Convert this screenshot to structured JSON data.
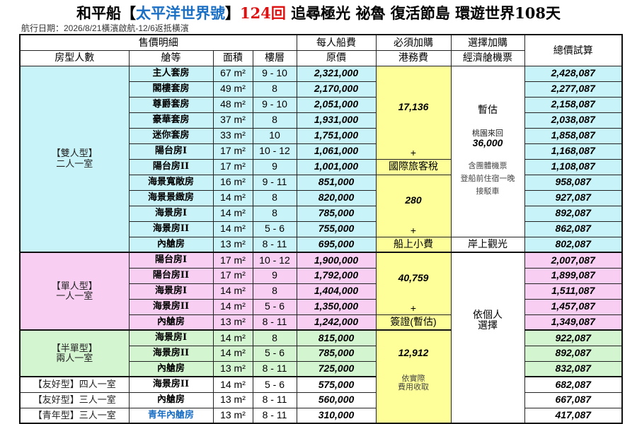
{
  "title": {
    "part1": "和平船【",
    "ship": "太平洋世界號",
    "part2": "】",
    "voyage": "124回",
    "part3": " 追尋極光 祕魯 復活節島 環遊世界108天"
  },
  "subtitle": "航行日期：2026/8/21橫濱啟航-12/6返抵橫濱",
  "headers": {
    "sales": "售價明細",
    "per_person": "每人船費",
    "required": "必須加購",
    "optional": "選擇加購",
    "total": "總價試算",
    "room_type": "房型人數",
    "cabin": "艙等",
    "area": "面積",
    "floor": "樓層",
    "price": "原價",
    "port_fee": "港務費",
    "flight": "經濟艙機票"
  },
  "colors": {
    "double": "#c8f3f8",
    "single": "#f8cff3",
    "half": "#d3f5d0",
    "required": "#ffff99",
    "title_blue": "#1a6fc4",
    "title_red": "#e01010"
  },
  "groups": [
    {
      "label1": "【雙人型】",
      "label2": "二人一室"
    },
    {
      "label1": "【單人型】",
      "label2": "一人一室"
    },
    {
      "label1": "【半單型】",
      "label2": "兩人一室"
    },
    {
      "label1": "【友好型】四人一室",
      "label2": ""
    },
    {
      "label1": "【友好型】三人一室",
      "label2": ""
    },
    {
      "label1": "【青年型】三人一室",
      "label2": ""
    }
  ],
  "rows": [
    {
      "cabin": "主人套房",
      "area": "67 m²",
      "floor": "9 - 10",
      "price": "2,321,000",
      "total": "2,428,087"
    },
    {
      "cabin": "閣樓套房",
      "area": "49 m²",
      "floor": "8",
      "price": "2,170,000",
      "total": "2,277,087"
    },
    {
      "cabin": "尊爵套房",
      "area": "48 m²",
      "floor": "9 - 10",
      "price": "2,051,000",
      "total": "2,158,087"
    },
    {
      "cabin": "豪華套房",
      "area": "37 m²",
      "floor": "8",
      "price": "1,931,000",
      "total": "2,038,087"
    },
    {
      "cabin": "迷你套房",
      "area": "33 m²",
      "floor": "10",
      "price": "1,751,000",
      "total": "1,858,087"
    },
    {
      "cabin": "陽台房I",
      "area": "17 m²",
      "floor": "10 - 12",
      "price": "1,061,000",
      "total": "1,168,087"
    },
    {
      "cabin": "陽台房II",
      "area": "17 m²",
      "floor": "9",
      "price": "1,001,000",
      "total": "1,108,087"
    },
    {
      "cabin": "海景寬敞房",
      "area": "16 m²",
      "floor": "9 - 11",
      "price": "851,000",
      "total": "958,087"
    },
    {
      "cabin": "海景景緻房",
      "area": "14 m²",
      "floor": "8",
      "price": "820,000",
      "total": "927,087"
    },
    {
      "cabin": "海景房I",
      "area": "14 m²",
      "floor": "8",
      "price": "785,000",
      "total": "892,087"
    },
    {
      "cabin": "海景房II",
      "area": "14 m²",
      "floor": "5 - 6",
      "price": "755,000",
      "total": "862,087"
    },
    {
      "cabin": "內艙房",
      "area": "13 m²",
      "floor": "8 - 11",
      "price": "695,000",
      "total": "802,087"
    },
    {
      "cabin": "陽台房I",
      "area": "17 m²",
      "floor": "10 - 12",
      "price": "1,900,000",
      "total": "2,007,087"
    },
    {
      "cabin": "陽台房II",
      "area": "17 m²",
      "floor": "9",
      "price": "1,792,000",
      "total": "1,899,087"
    },
    {
      "cabin": "海景房I",
      "area": "14 m²",
      "floor": "8",
      "price": "1,404,000",
      "total": "1,511,087"
    },
    {
      "cabin": "海景房II",
      "area": "14 m²",
      "floor": "5 - 6",
      "price": "1,350,000",
      "total": "1,457,087"
    },
    {
      "cabin": "內艙房",
      "area": "13 m²",
      "floor": "8 - 11",
      "price": "1,242,000",
      "total": "1,349,087"
    },
    {
      "cabin": "海景房I",
      "area": "14 m²",
      "floor": "8",
      "price": "815,000",
      "total": "922,087"
    },
    {
      "cabin": "海景房II",
      "area": "14 m²",
      "floor": "5 - 6",
      "price": "785,000",
      "total": "892,087"
    },
    {
      "cabin": "內艙房",
      "area": "13 m²",
      "floor": "8 - 11",
      "price": "725,000",
      "total": "832,087"
    },
    {
      "cabin": "海景房II",
      "area": "14 m²",
      "floor": "5 - 6",
      "price": "575,000",
      "total": "682,087"
    },
    {
      "cabin": "內艙房",
      "area": "13 m²",
      "floor": "8 - 11",
      "price": "560,000",
      "total": "667,087"
    },
    {
      "cabin": "青年內艙房",
      "area": "13 m²",
      "floor": "8 - 11",
      "price": "310,000",
      "total": "417,087"
    }
  ],
  "fees": {
    "port_fee": "17,136",
    "plus": "+",
    "intl_tax_label": "國際旅客稅",
    "intl_tax": "280",
    "tips_label": "船上小費",
    "tips": "40,759",
    "visa_label": "簽證(暫估)",
    "visa": "12,912",
    "visa_note1": "依實際",
    "visa_note2": "費用收取"
  },
  "flight": {
    "estimate": "暫估",
    "route": "桃園來回",
    "price": "36,000",
    "incl1": "含團體機票",
    "incl2": "登船前住宿一晚",
    "incl3": "接駁車",
    "shore": "岸上觀光",
    "choice1": "依個人",
    "choice2": "選擇"
  }
}
